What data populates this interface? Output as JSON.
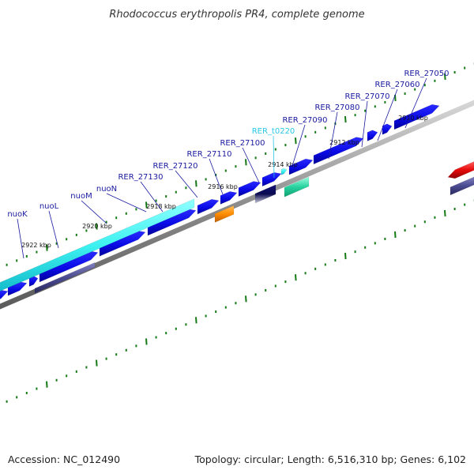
{
  "title": "Rhodococcus erythropolis PR4, complete genome",
  "footer": {
    "accession": "Accession: NC_012490",
    "summary": "Topology: circular; Length: 6,516,310 bp; Genes: 6,102"
  },
  "colors": {
    "cds": "#0a0ae6",
    "trna": "#00c8f0",
    "label": "#1a1aa0",
    "trna_label": "#28c8e6",
    "backbone": "#8c8c8c",
    "tick": "#157a15",
    "operon": "#3cf0f0",
    "operon_dark": "#4a4a90",
    "orange": "#ff8c00",
    "teal": "#28d2a0",
    "navy": "#141478",
    "red": "#e60a0a"
  },
  "ticks": [
    {
      "label": "2910 kbp"
    },
    {
      "label": "2912 kbp"
    },
    {
      "label": "2914 kbp"
    },
    {
      "label": "2916 kbp"
    },
    {
      "label": "2918 kbp"
    },
    {
      "label": "2920 kbp"
    },
    {
      "label": "2922 kbp"
    }
  ],
  "genes": [
    {
      "label": "RER_27050",
      "type": "CDS"
    },
    {
      "label": "RER_27060",
      "type": "CDS"
    },
    {
      "label": "RER_27070",
      "type": "CDS"
    },
    {
      "label": "RER_27080",
      "type": "CDS"
    },
    {
      "label": "RER_27090",
      "type": "CDS"
    },
    {
      "label": "RER_t0220",
      "type": "tRNA"
    },
    {
      "label": "RER_27100",
      "type": "CDS"
    },
    {
      "label": "RER_27110",
      "type": "CDS"
    },
    {
      "label": "RER_27120",
      "type": "CDS"
    },
    {
      "label": "RER_27130",
      "type": "CDS"
    },
    {
      "label": "nuoN",
      "type": "CDS"
    },
    {
      "label": "nuoM",
      "type": "CDS"
    },
    {
      "label": "nuoL",
      "type": "CDS"
    },
    {
      "label": "nuoK",
      "type": "CDS"
    }
  ]
}
